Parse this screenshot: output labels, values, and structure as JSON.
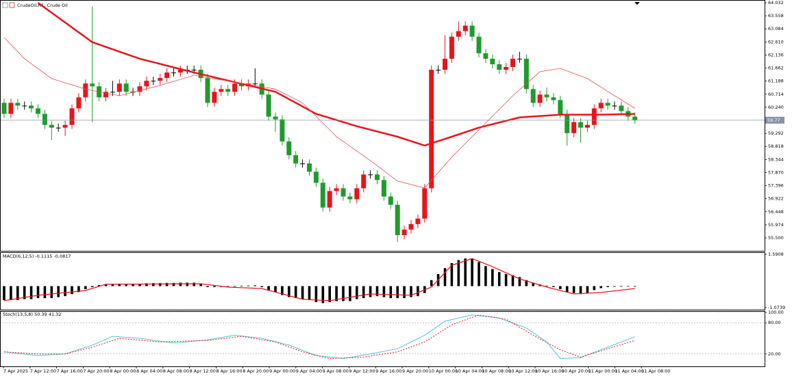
{
  "chart_data": [
    {
      "type": "candlestick",
      "title": "CrudeOil,H1: Crude Oil",
      "up_color": "#e8141b",
      "down_color": "#1f9b2c",
      "flat_color": "#000000",
      "ohlc": [
        [
          60.4,
          60.55,
          59.85,
          60.0
        ],
        [
          60.0,
          60.55,
          59.85,
          60.4
        ],
        [
          60.4,
          60.55,
          60.15,
          60.3
        ],
        [
          60.3,
          60.45,
          60.15,
          60.3
        ],
        [
          60.3,
          60.45,
          60.05,
          60.2
        ],
        [
          60.2,
          60.35,
          59.85,
          60.0
        ],
        [
          60.0,
          60.15,
          59.45,
          59.6
        ],
        [
          59.6,
          59.75,
          59.05,
          59.5
        ],
        [
          59.5,
          59.65,
          59.35,
          59.5
        ],
        [
          59.5,
          59.75,
          59.2,
          59.6
        ],
        [
          59.6,
          60.35,
          59.45,
          60.2
        ],
        [
          60.2,
          60.75,
          60.05,
          60.6
        ],
        [
          60.6,
          61.25,
          60.45,
          61.1
        ],
        [
          61.1,
          63.9,
          59.7,
          61.0
        ],
        [
          61.0,
          61.15,
          60.45,
          60.6
        ],
        [
          60.6,
          60.95,
          60.45,
          60.8
        ],
        [
          60.8,
          61.2,
          60.65,
          60.8
        ],
        [
          60.8,
          61.25,
          60.65,
          61.1
        ],
        [
          61.1,
          61.25,
          60.65,
          60.8
        ],
        [
          60.8,
          60.95,
          60.65,
          60.8
        ],
        [
          60.8,
          61.15,
          60.65,
          61.0
        ],
        [
          61.0,
          61.35,
          60.85,
          61.2
        ],
        [
          61.2,
          61.35,
          61.05,
          61.2
        ],
        [
          61.2,
          61.45,
          61.05,
          61.3
        ],
        [
          61.3,
          61.65,
          61.15,
          61.5
        ],
        [
          61.5,
          61.65,
          61.35,
          61.5
        ],
        [
          61.5,
          61.75,
          61.35,
          61.6
        ],
        [
          61.6,
          61.75,
          61.45,
          61.6
        ],
        [
          61.6,
          61.75,
          61.45,
          61.6
        ],
        [
          61.6,
          61.75,
          61.15,
          61.3
        ],
        [
          61.3,
          61.45,
          60.25,
          60.4
        ],
        [
          60.4,
          60.95,
          60.25,
          60.8
        ],
        [
          60.8,
          61.05,
          60.65,
          60.9
        ],
        [
          60.9,
          61.05,
          60.65,
          60.8
        ],
        [
          60.8,
          61.25,
          60.65,
          61.1
        ],
        [
          61.1,
          61.25,
          60.85,
          61.0
        ],
        [
          61.0,
          61.25,
          60.85,
          61.1
        ],
        [
          61.1,
          61.65,
          60.95,
          61.1
        ],
        [
          61.1,
          61.25,
          60.55,
          60.7
        ],
        [
          60.7,
          60.85,
          59.75,
          59.9
        ],
        [
          59.9,
          60.05,
          59.35,
          59.8
        ],
        [
          59.8,
          59.95,
          58.85,
          59.0
        ],
        [
          59.0,
          59.15,
          58.35,
          58.5
        ],
        [
          58.5,
          58.65,
          58.05,
          58.2
        ],
        [
          58.2,
          58.35,
          58.05,
          58.2
        ],
        [
          58.2,
          58.35,
          57.75,
          57.9
        ],
        [
          57.9,
          58.05,
          57.35,
          57.5
        ],
        [
          57.5,
          57.65,
          56.45,
          56.6
        ],
        [
          56.6,
          57.35,
          56.45,
          57.2
        ],
        [
          57.2,
          57.45,
          57.05,
          57.3
        ],
        [
          57.3,
          57.45,
          56.85,
          57.0
        ],
        [
          57.0,
          57.15,
          56.75,
          56.9
        ],
        [
          56.9,
          57.45,
          56.75,
          57.3
        ],
        [
          57.3,
          57.95,
          57.15,
          57.8
        ],
        [
          57.8,
          57.95,
          57.65,
          57.8
        ],
        [
          57.8,
          57.95,
          57.45,
          57.6
        ],
        [
          57.6,
          57.75,
          56.85,
          57.0
        ],
        [
          57.0,
          57.15,
          56.55,
          56.7
        ],
        [
          56.7,
          56.85,
          55.35,
          55.6
        ],
        [
          55.6,
          55.95,
          55.45,
          55.8
        ],
        [
          55.8,
          56.15,
          55.65,
          56.0
        ],
        [
          56.0,
          56.35,
          55.85,
          56.2
        ],
        [
          56.2,
          57.45,
          56.05,
          57.3
        ],
        [
          57.3,
          61.75,
          57.15,
          61.6
        ],
        [
          61.6,
          61.75,
          61.45,
          61.6
        ],
        [
          61.6,
          62.85,
          61.45,
          62.0
        ],
        [
          62.0,
          62.95,
          61.85,
          62.8
        ],
        [
          62.8,
          63.35,
          62.65,
          63.0
        ],
        [
          63.0,
          63.35,
          62.85,
          63.2
        ],
        [
          63.2,
          63.35,
          62.65,
          62.8
        ],
        [
          62.8,
          62.95,
          62.05,
          62.2
        ],
        [
          62.2,
          62.35,
          61.85,
          62.0
        ],
        [
          62.0,
          62.15,
          61.65,
          61.8
        ],
        [
          61.8,
          61.95,
          61.45,
          61.6
        ],
        [
          61.6,
          61.85,
          61.45,
          61.7
        ],
        [
          61.7,
          62.15,
          61.55,
          62.0
        ],
        [
          62.0,
          62.25,
          61.85,
          62.0
        ],
        [
          62.0,
          62.15,
          60.75,
          60.9
        ],
        [
          60.9,
          61.05,
          60.25,
          60.4
        ],
        [
          60.4,
          60.85,
          60.25,
          60.7
        ],
        [
          60.7,
          60.95,
          60.45,
          60.6
        ],
        [
          60.6,
          60.75,
          60.35,
          60.5
        ],
        [
          60.5,
          60.65,
          59.85,
          60.0
        ],
        [
          60.0,
          60.15,
          58.85,
          59.3
        ],
        [
          59.3,
          59.85,
          59.15,
          59.7
        ],
        [
          59.7,
          59.85,
          58.95,
          59.5
        ],
        [
          59.5,
          59.75,
          59.35,
          59.6
        ],
        [
          59.6,
          60.35,
          59.45,
          60.2
        ],
        [
          60.2,
          60.55,
          60.05,
          60.4
        ],
        [
          60.4,
          60.55,
          60.15,
          60.3
        ],
        [
          60.3,
          60.45,
          60.15,
          60.3
        ],
        [
          60.3,
          60.45,
          59.95,
          60.1
        ],
        [
          60.1,
          60.25,
          59.75,
          59.9
        ],
        [
          59.9,
          60.05,
          59.65,
          59.77
        ]
      ],
      "series": [
        {
          "color": "#e8141b",
          "width": 2.5,
          "x": [
            5,
            13,
            20,
            28,
            34,
            40,
            46,
            52,
            58,
            62,
            66,
            70,
            76,
            82,
            88,
            93
          ],
          "values": [
            64.03,
            62.6,
            62.0,
            61.5,
            61.15,
            60.8,
            60.0,
            59.55,
            59.17,
            58.85,
            59.17,
            59.5,
            59.87,
            59.97,
            59.97,
            60.0
          ]
        },
        {
          "color": "#f04a4a",
          "width": 0.8,
          "x": [
            0,
            3,
            7,
            12,
            17,
            23,
            28,
            34,
            40,
            44,
            49,
            54,
            58,
            62,
            66,
            70,
            75,
            79,
            82,
            86,
            90,
            93
          ],
          "values": [
            62.77,
            62.0,
            61.28,
            60.9,
            60.66,
            61.03,
            61.4,
            61.15,
            60.9,
            60.4,
            59.17,
            58.3,
            57.56,
            57.31,
            58.43,
            59.42,
            60.66,
            61.53,
            61.65,
            61.28,
            60.66,
            60.2
          ]
        }
      ],
      "current_price": 59.77,
      "ylim": [
        55.5,
        64.032
      ],
      "yticks": [
        64.032,
        63.558,
        63.084,
        {
          "value": 62.61,
          "label": "62.610"
        },
        62.136,
        61.662,
        61.188,
        60.714,
        {
          "value": 60.24,
          "label": "60.240"
        },
        59.292,
        58.818,
        58.344,
        {
          "value": 57.87,
          "label": "57.870"
        },
        57.396,
        56.922,
        56.448,
        55.974,
        {
          "value": 55.5,
          "label": "55.500"
        }
      ]
    },
    {
      "type": "bar",
      "title": "MACD(6,12,5) -0.1115 -0.0817",
      "color": "#000000",
      "values": [
        -0.7,
        -0.7,
        -0.7,
        -0.65,
        -0.65,
        -0.6,
        -0.6,
        -0.6,
        -0.55,
        -0.5,
        -0.4,
        -0.3,
        -0.15,
        -0.05,
        0.05,
        0.1,
        0.1,
        0.12,
        0.12,
        0.12,
        0.12,
        0.14,
        0.15,
        0.15,
        0.16,
        0.16,
        0.17,
        0.17,
        0.17,
        0.1,
        -0.05,
        -0.05,
        -0.04,
        -0.02,
        0,
        0.02,
        0.03,
        0.04,
        -0.05,
        -0.2,
        -0.3,
        -0.45,
        -0.55,
        -0.6,
        -0.65,
        -0.7,
        -0.8,
        -0.85,
        -0.8,
        -0.75,
        -0.75,
        -0.75,
        -0.65,
        -0.6,
        -0.55,
        -0.5,
        -0.55,
        -0.6,
        -0.6,
        -0.6,
        -0.55,
        -0.5,
        -0.35,
        0.3,
        0.6,
        0.9,
        1.15,
        1.3,
        1.38,
        1.35,
        1.2,
        1.0,
        0.85,
        0.7,
        0.6,
        0.55,
        0.45,
        0.3,
        0.15,
        0.08,
        0.02,
        -0.05,
        -0.15,
        -0.3,
        -0.35,
        -0.4,
        -0.35,
        -0.2,
        -0.1,
        -0.05,
        -0.02,
        -0.02,
        -0.02,
        0
      ],
      "series": [
        {
          "color": "#e8141b",
          "width": 1.3,
          "x": [
            0,
            5,
            12,
            15,
            29,
            33,
            38,
            44,
            48,
            54,
            60,
            63,
            66,
            69,
            72,
            76,
            80,
            84,
            88,
            93
          ],
          "values": [
            -0.73,
            -0.46,
            -0.22,
            0.09,
            0.12,
            -0.05,
            -0.12,
            -0.66,
            -0.73,
            -0.39,
            -0.46,
            -0.05,
            1.04,
            1.38,
            0.97,
            0.36,
            -0.05,
            -0.39,
            -0.32,
            -0.12
          ]
        }
      ],
      "ylim": [
        -1.0739,
        1.5908
      ],
      "yticks": [
        1.5908,
        -1.0739
      ]
    },
    {
      "type": "line",
      "title": "Stoch(13,5,8) 50.39 41.32",
      "series": [
        {
          "color": "#4fc3d9",
          "width": 1,
          "dash": false,
          "x": [
            0,
            5,
            9,
            13,
            16,
            20,
            25,
            30,
            34,
            38,
            42,
            46,
            50,
            54,
            58,
            62,
            65,
            69,
            73,
            77,
            80,
            82,
            85,
            89,
            93
          ],
          "values": [
            24,
            17,
            20,
            37,
            54,
            50,
            41,
            47,
            56,
            50,
            37,
            17,
            11,
            20,
            30,
            56,
            83,
            95,
            89,
            70,
            43,
            11,
            13,
            33,
            53
          ]
        },
        {
          "color": "#e8141b",
          "width": 1,
          "dash": true,
          "x": [
            0,
            5,
            9,
            13,
            17,
            23,
            30,
            35,
            40,
            44,
            48,
            53,
            58,
            62,
            66,
            70,
            74,
            78,
            82,
            85,
            89,
            93
          ],
          "values": [
            24,
            20,
            20,
            33,
            50,
            43,
            46,
            54,
            43,
            24,
            11,
            14,
            24,
            43,
            76,
            95,
            87,
            56,
            28,
            14,
            30,
            46
          ]
        }
      ],
      "ylim": [
        0,
        100
      ],
      "yticks": [
        {
          "value": 100,
          "label": "100.00"
        },
        {
          "value": 80,
          "label": "80.00"
        },
        {
          "value": 20,
          "label": "20.00"
        }
      ],
      "time_labels": [
        "7 Apr 2025",
        "7 Apr 12:00",
        "7 Apr 16:00",
        "7 Apr 20:00",
        "8 Apr 00:00",
        "8 Apr 04:00",
        "8 Apr 08:00",
        "8 Apr 12:00",
        "8 Apr 16:00",
        "8 Apr 20:00",
        "9 Apr 00:00",
        "9 Apr 04:00",
        "9 Apr 08:00",
        "9 Apr 12:00",
        "9 Apr 16:00",
        "9 Apr 20:00",
        "10 Apr 00:00",
        "10 Apr 04:00",
        "10 Apr 08:00",
        "10 Apr 12:00",
        "10 Apr 16:00",
        "10 Apr 20:00",
        "11 Apr 00:00",
        "11 Apr 04:00",
        "11 Apr 08:00"
      ]
    }
  ]
}
